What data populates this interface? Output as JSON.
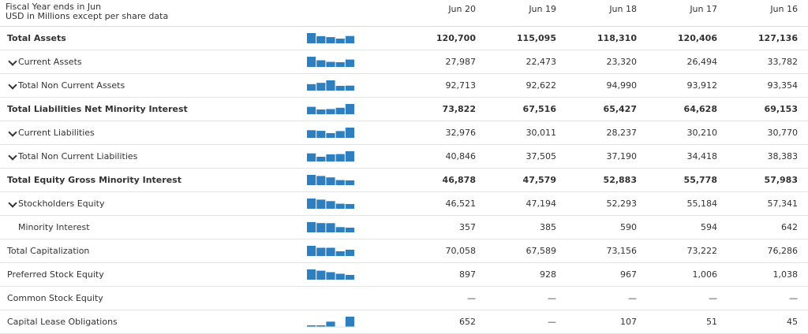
{
  "header": {
    "title_line1": "Fiscal Year ends in Jun",
    "title_line2": "USD in Millions except per share data",
    "columns": [
      "Jun 20",
      "Jun 19",
      "Jun 18",
      "Jun 17",
      "Jun 16"
    ]
  },
  "colors": {
    "bar": "#2e7fbf",
    "grid": "#e3e3e3",
    "text": "#333333"
  },
  "rows": [
    {
      "label": "Total Assets",
      "bold": true,
      "expand": false,
      "indent": 0,
      "values": [
        "120,700",
        "115,095",
        "118,310",
        "120,406",
        "127,136"
      ],
      "trend": [
        120700,
        115095,
        118310,
        120406,
        127136
      ]
    },
    {
      "label": "Current Assets",
      "bold": false,
      "expand": true,
      "indent": 1,
      "values": [
        "27,987",
        "22,473",
        "23,320",
        "26,494",
        "33,782"
      ],
      "trend": [
        27987,
        22473,
        23320,
        26494,
        33782
      ]
    },
    {
      "label": "Total Non Current Assets",
      "bold": false,
      "expand": true,
      "indent": 1,
      "values": [
        "92,713",
        "92,622",
        "94,990",
        "93,912",
        "93,354"
      ],
      "trend": [
        92713,
        92622,
        94990,
        93912,
        93354
      ]
    },
    {
      "label": "Total Liabilities Net Minority Interest",
      "bold": true,
      "expand": false,
      "indent": 0,
      "values": [
        "73,822",
        "67,516",
        "65,427",
        "64,628",
        "69,153"
      ],
      "trend": [
        73822,
        67516,
        65427,
        64628,
        69153
      ]
    },
    {
      "label": "Current Liabilities",
      "bold": false,
      "expand": true,
      "indent": 1,
      "values": [
        "32,976",
        "30,011",
        "28,237",
        "30,210",
        "30,770"
      ],
      "trend": [
        32976,
        30011,
        28237,
        30210,
        30770
      ]
    },
    {
      "label": "Total Non Current Liabilities",
      "bold": false,
      "expand": true,
      "indent": 1,
      "values": [
        "40,846",
        "37,505",
        "37,190",
        "34,418",
        "38,383"
      ],
      "trend": [
        40846,
        37505,
        37190,
        34418,
        38383
      ]
    },
    {
      "label": "Total Equity Gross Minority Interest",
      "bold": true,
      "expand": false,
      "indent": 0,
      "values": [
        "46,878",
        "47,579",
        "52,883",
        "55,778",
        "57,983"
      ],
      "trend": [
        46878,
        47579,
        52883,
        55778,
        57983
      ]
    },
    {
      "label": "Stockholders Equity",
      "bold": false,
      "expand": true,
      "indent": 1,
      "values": [
        "46,521",
        "47,194",
        "52,293",
        "55,184",
        "57,341"
      ],
      "trend": [
        46521,
        47194,
        52293,
        55184,
        57341
      ]
    },
    {
      "label": "Minority Interest",
      "bold": false,
      "expand": false,
      "indent": 2,
      "values": [
        "357",
        "385",
        "590",
        "594",
        "642"
      ],
      "trend": [
        357,
        385,
        590,
        594,
        642
      ]
    },
    {
      "label": "Total Capitalization",
      "bold": false,
      "expand": false,
      "indent": 0,
      "values": [
        "70,058",
        "67,589",
        "73,156",
        "73,222",
        "76,286"
      ],
      "trend": [
        70058,
        67589,
        73156,
        73222,
        76286
      ]
    },
    {
      "label": "Preferred Stock Equity",
      "bold": false,
      "expand": false,
      "indent": 0,
      "values": [
        "897",
        "928",
        "967",
        "1,006",
        "1,038"
      ],
      "trend": [
        897,
        928,
        967,
        1006,
        1038
      ]
    },
    {
      "label": "Common Stock Equity",
      "bold": false,
      "expand": false,
      "indent": 0,
      "values": [
        "—",
        "—",
        "—",
        "—",
        "—"
      ],
      "trend": [
        0,
        0,
        0,
        0,
        0
      ]
    },
    {
      "label": "Capital Lease Obligations",
      "bold": false,
      "expand": false,
      "indent": 0,
      "values": [
        "652",
        "—",
        "107",
        "51",
        "45"
      ],
      "trend": [
        652,
        0,
        107,
        51,
        45
      ]
    }
  ]
}
